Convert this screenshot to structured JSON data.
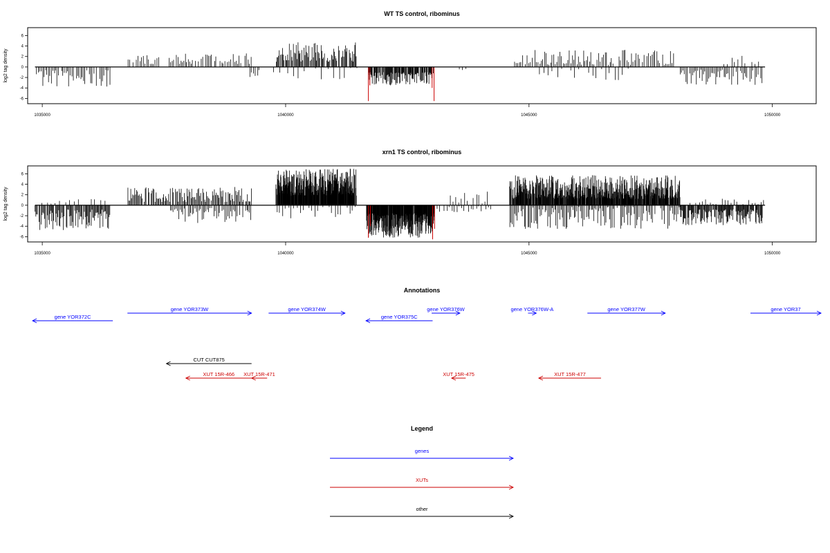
{
  "chart_data": [
    {
      "type": "bar",
      "title": "WT TS control, ribominus",
      "ylabel": "log2 tag density",
      "xlabel": "",
      "xlim": [
        1034700,
        1050900
      ],
      "ylim": [
        -7,
        7.5
      ],
      "xticks": [
        1035000,
        1040000,
        1045000,
        1050000
      ],
      "yticks": [
        -6,
        -4,
        -2,
        0,
        2,
        4,
        6
      ],
      "grid": false,
      "segments": [
        {
          "start": 1034850,
          "end": 1036400,
          "strand": "-",
          "min": 0.6,
          "max": 3.8,
          "step": 30,
          "color": "#000000"
        },
        {
          "start": 1036750,
          "end": 1037400,
          "strand": "+",
          "min": 0.4,
          "max": 2.3,
          "step": 35,
          "color": "#000000"
        },
        {
          "start": 1037600,
          "end": 1039300,
          "strand": "+",
          "min": 0.6,
          "max": 2.6,
          "step": 30,
          "color": "#000000"
        },
        {
          "start": 1039250,
          "end": 1039450,
          "strand": "-",
          "min": 0.3,
          "max": 2.5,
          "step": 40,
          "color": "#000000"
        },
        {
          "start": 1039800,
          "end": 1041450,
          "strand": "+",
          "min": 1.0,
          "max": 4.8,
          "step": 16,
          "color": "#000000"
        },
        {
          "start": 1039750,
          "end": 1041450,
          "strand": "-",
          "min": 0.2,
          "max": 2.5,
          "step": 120,
          "color": "#000000"
        },
        {
          "start": 1041700,
          "end": 1043050,
          "strand": "-",
          "min": 1.0,
          "max": 3.5,
          "step": 10,
          "color": "#000000"
        },
        {
          "start": 1043500,
          "end": 1043700,
          "strand": "-",
          "min": 0.2,
          "max": 0.6,
          "step": 60,
          "color": "#000000"
        },
        {
          "start": 1044700,
          "end": 1048000,
          "strand": "+",
          "min": 0.4,
          "max": 3.3,
          "step": 32,
          "color": "#000000"
        },
        {
          "start": 1045200,
          "end": 1047000,
          "strand": "-",
          "min": 0.3,
          "max": 2.5,
          "step": 90,
          "color": "#000000"
        },
        {
          "start": 1048100,
          "end": 1049800,
          "strand": "-",
          "min": 0.5,
          "max": 3.6,
          "step": 28,
          "color": "#000000"
        },
        {
          "start": 1049000,
          "end": 1049700,
          "strand": "+",
          "min": 0.5,
          "max": 2.3,
          "step": 70,
          "color": "#000000"
        }
      ],
      "spikes": [
        {
          "x": 1041700,
          "value": -6.5,
          "color": "#cc0000"
        },
        {
          "x": 1041730,
          "value": -3.5,
          "color": "#cc0000"
        },
        {
          "x": 1043050,
          "value": -6.5,
          "color": "#cc0000"
        },
        {
          "x": 1043010,
          "value": -4.0,
          "color": "#cc0000"
        }
      ]
    },
    {
      "type": "bar",
      "title": "xrn1 TS control, ribominus",
      "ylabel": "log2 tag density",
      "xlabel": "",
      "xlim": [
        1034700,
        1050900
      ],
      "ylim": [
        -7,
        7.5
      ],
      "xticks": [
        1035000,
        1040000,
        1045000,
        1050000
      ],
      "yticks": [
        -6,
        -4,
        -2,
        0,
        2,
        4,
        6
      ],
      "grid": false,
      "segments": [
        {
          "start": 1034850,
          "end": 1036400,
          "strand": "-",
          "min": 0.8,
          "max": 4.8,
          "step": 16,
          "color": "#000000"
        },
        {
          "start": 1034900,
          "end": 1036300,
          "strand": "+",
          "min": 0.3,
          "max": 1.2,
          "step": 90,
          "color": "#000000"
        },
        {
          "start": 1036750,
          "end": 1039300,
          "strand": "+",
          "min": 0.6,
          "max": 3.5,
          "step": 20,
          "color": "#000000"
        },
        {
          "start": 1037600,
          "end": 1039300,
          "strand": "-",
          "min": 0.5,
          "max": 3.5,
          "step": 28,
          "color": "#000000"
        },
        {
          "start": 1039800,
          "end": 1041450,
          "strand": "+",
          "min": 1.8,
          "max": 7.0,
          "step": 5,
          "color": "#000000"
        },
        {
          "start": 1039800,
          "end": 1041450,
          "strand": "-",
          "min": 0.3,
          "max": 2.8,
          "step": 60,
          "color": "#000000"
        },
        {
          "start": 1041650,
          "end": 1043050,
          "strand": "-",
          "min": 1.5,
          "max": 6.2,
          "step": 5,
          "color": "#000000"
        },
        {
          "start": 1043100,
          "end": 1044200,
          "strand": "-",
          "min": 0.2,
          "max": 1.5,
          "step": 50,
          "color": "#000000"
        },
        {
          "start": 1043300,
          "end": 1044200,
          "strand": "+",
          "min": 0.3,
          "max": 2.6,
          "step": 60,
          "color": "#000000"
        },
        {
          "start": 1044600,
          "end": 1048100,
          "strand": "+",
          "min": 1.2,
          "max": 5.8,
          "step": 7,
          "color": "#000000"
        },
        {
          "start": 1044600,
          "end": 1048100,
          "strand": "-",
          "min": 0.3,
          "max": 4.5,
          "step": 25,
          "color": "#000000"
        },
        {
          "start": 1048100,
          "end": 1049800,
          "strand": "-",
          "min": 0.8,
          "max": 3.8,
          "step": 12,
          "color": "#000000"
        },
        {
          "start": 1048300,
          "end": 1049800,
          "strand": "+",
          "min": 0.2,
          "max": 1.5,
          "step": 60,
          "color": "#000000"
        }
      ],
      "spikes": [
        {
          "x": 1041700,
          "value": -6.2,
          "color": "#cc0000"
        },
        {
          "x": 1041740,
          "value": -4.0,
          "color": "#cc0000"
        },
        {
          "x": 1043020,
          "value": -6.5,
          "color": "#cc0000"
        },
        {
          "x": 1043060,
          "value": -4.5,
          "color": "#cc0000"
        }
      ]
    }
  ],
  "annotations": {
    "title": "Annotations",
    "genes": [
      {
        "label": "gene YOR372C",
        "start": 1034800,
        "end": 1036450,
        "strand": "-",
        "row": 2,
        "color": "#0000ff"
      },
      {
        "label": "gene YOR373W",
        "start": 1036750,
        "end": 1039300,
        "strand": "+",
        "row": 1,
        "color": "#0000ff"
      },
      {
        "label": "gene YOR374W",
        "start": 1039650,
        "end": 1041220,
        "strand": "+",
        "row": 1,
        "color": "#0000ff"
      },
      {
        "label": "gene YOR375C",
        "start": 1041650,
        "end": 1043020,
        "strand": "-",
        "row": 2,
        "color": "#0000ff"
      },
      {
        "label": "gene YOR376W",
        "start": 1043000,
        "end": 1043580,
        "strand": "+",
        "row": 0,
        "color": "#0000ff"
      },
      {
        "label": "gene YOR376W-A",
        "start": 1044980,
        "end": 1045150,
        "strand": "+",
        "row": 0,
        "color": "#0000ff"
      },
      {
        "label": "gene YOR377W",
        "start": 1046200,
        "end": 1047800,
        "strand": "+",
        "row": 1,
        "color": "#0000ff"
      },
      {
        "label": "gene YOR37",
        "start": 1049550,
        "end": 1051000,
        "strand": "+",
        "row": 1,
        "color": "#0000ff"
      }
    ],
    "features": [
      {
        "label": "CUT CUT875",
        "start": 1037550,
        "end": 1039300,
        "strand": "-",
        "row": 3,
        "color": "#000000"
      },
      {
        "label": "XUT 15R-466",
        "start": 1037950,
        "end": 1039300,
        "strand": "-",
        "row": 4,
        "color": "#cc0000"
      },
      {
        "label": "XUT 15R-471",
        "start": 1039300,
        "end": 1039620,
        "strand": "-",
        "row": 4,
        "color": "#cc0000"
      },
      {
        "label": "XUT 15R-475",
        "start": 1043410,
        "end": 1043700,
        "strand": "-",
        "row": 4,
        "color": "#cc0000"
      },
      {
        "label": "XUT 15R-477",
        "start": 1045200,
        "end": 1046480,
        "strand": "-",
        "row": 4,
        "color": "#cc0000"
      }
    ]
  },
  "legend": {
    "title": "Legend",
    "items": [
      {
        "label": "genes",
        "color": "#0000ff"
      },
      {
        "label": "XUTs",
        "color": "#cc0000"
      },
      {
        "label": "other",
        "color": "#000000"
      }
    ]
  }
}
